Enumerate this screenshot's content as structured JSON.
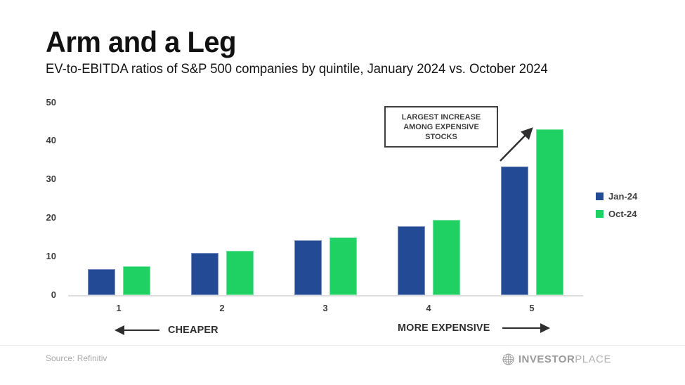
{
  "header": {
    "title": "Arm and a Leg",
    "subtitle": "EV-to-EBITDA ratios of S&P 500 companies by quintile, January 2024 vs. October 2024"
  },
  "chart_data": {
    "type": "bar",
    "categories": [
      "1",
      "2",
      "3",
      "4",
      "5"
    ],
    "series": [
      {
        "name": "Jan-24",
        "color": "#234a94",
        "values": [
          6.8,
          11.0,
          14.2,
          17.8,
          33.3
        ]
      },
      {
        "name": "Oct-24",
        "color": "#1fd163",
        "values": [
          7.4,
          11.5,
          15.0,
          19.5,
          43.0
        ]
      }
    ],
    "title": "Arm and a Leg",
    "xlabel": "",
    "ylabel": "",
    "ylim": [
      0,
      50
    ],
    "yticks": [
      0,
      10,
      20,
      30,
      40,
      50
    ],
    "grid": false,
    "legend_position": "right",
    "annotation": {
      "text_lines": [
        "LARGEST INCREASE",
        "AMONG EXPENSIVE",
        "STOCKS"
      ]
    },
    "direction_labels": {
      "left": "CHEAPER",
      "right": "MORE EXPENSIVE"
    }
  },
  "footer": {
    "source": "Source: Refinitiv",
    "logo_bold": "INVESTOR",
    "logo_light": "PLACE"
  }
}
